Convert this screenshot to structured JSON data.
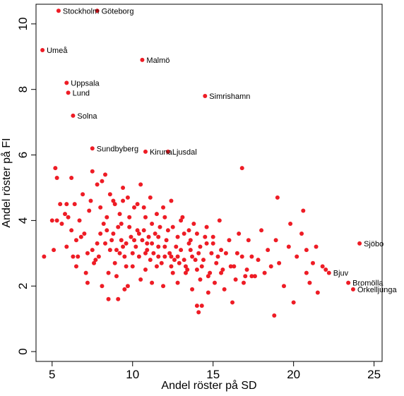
{
  "chart_data": {
    "type": "scatter",
    "title": "",
    "xlabel": "Andel röster på SD",
    "ylabel": "Andel röster på FI",
    "xlim": [
      4,
      25.5
    ],
    "ylim": [
      -0.3,
      10.6
    ],
    "xticks": [
      5,
      10,
      15,
      20,
      25
    ],
    "yticks": [
      0,
      2,
      4,
      6,
      8,
      10
    ],
    "point_color": "#ee1c25",
    "grid": false,
    "labeled_points": [
      {
        "label": "Stockholm",
        "x": 5.4,
        "y": 10.4
      },
      {
        "label": "Göteborg",
        "x": 7.8,
        "y": 10.4
      },
      {
        "label": "Umeå",
        "x": 4.4,
        "y": 9.2
      },
      {
        "label": "Malmö",
        "x": 10.6,
        "y": 8.9
      },
      {
        "label": "Uppsala",
        "x": 5.9,
        "y": 8.2
      },
      {
        "label": "Lund",
        "x": 6.0,
        "y": 7.9
      },
      {
        "label": "Simrishamn",
        "x": 14.5,
        "y": 7.8
      },
      {
        "label": "Solna",
        "x": 6.3,
        "y": 7.2
      },
      {
        "label": "Sundbyberg",
        "x": 7.5,
        "y": 6.2
      },
      {
        "label": "Kiruna",
        "x": 10.8,
        "y": 6.1
      },
      {
        "label": "Ljusdal",
        "x": 12.2,
        "y": 6.1
      },
      {
        "label": "Sjöbo",
        "x": 24.1,
        "y": 3.3
      },
      {
        "label": "Bjuv",
        "x": 22.2,
        "y": 2.4
      },
      {
        "label": "Bromölla",
        "x": 23.4,
        "y": 2.1
      },
      {
        "label": "Örkelljunga",
        "x": 23.7,
        "y": 1.9
      }
    ],
    "points": [
      [
        5.2,
        5.6
      ],
      [
        5.3,
        5.3
      ],
      [
        5.5,
        4.5
      ],
      [
        5.8,
        4.2
      ],
      [
        5.9,
        4.5
      ],
      [
        6.2,
        5.3
      ],
      [
        6.4,
        4.5
      ],
      [
        6.7,
        4.0
      ],
      [
        6.9,
        4.8
      ],
      [
        7.3,
        4.3
      ],
      [
        7.5,
        5.5
      ],
      [
        7.8,
        5.1
      ],
      [
        8.1,
        5.2
      ],
      [
        8.3,
        5.4
      ],
      [
        8.6,
        4.8
      ],
      [
        8.8,
        4.6
      ],
      [
        9.2,
        4.2
      ],
      [
        9.4,
        5.0
      ],
      [
        9.7,
        4.7
      ],
      [
        10.1,
        4.4
      ],
      [
        10.5,
        5.1
      ],
      [
        10.8,
        4.1
      ],
      [
        11.2,
        3.9
      ],
      [
        11.9,
        4.4
      ],
      [
        12.4,
        4.6
      ],
      [
        13.1,
        4.1
      ],
      [
        13.8,
        3.9
      ],
      [
        14.6,
        3.8
      ],
      [
        15.4,
        4.0
      ],
      [
        16.6,
        3.6
      ],
      [
        5.1,
        3.1
      ],
      [
        5.3,
        4.0
      ],
      [
        5.6,
        3.9
      ],
      [
        5.9,
        3.2
      ],
      [
        6.3,
        2.9
      ],
      [
        6.5,
        3.4
      ],
      [
        6.8,
        3.5
      ],
      [
        7.2,
        3.0
      ],
      [
        7.5,
        3.1
      ],
      [
        7.7,
        2.8
      ],
      [
        8.0,
        3.6
      ],
      [
        8.3,
        3.3
      ],
      [
        8.6,
        3.1
      ],
      [
        8.9,
        2.7
      ],
      [
        9.1,
        3.8
      ],
      [
        9.3,
        3.4
      ],
      [
        9.6,
        2.6
      ],
      [
        9.9,
        3.5
      ],
      [
        10.2,
        3.2
      ],
      [
        10.4,
        2.9
      ],
      [
        10.7,
        3.7
      ],
      [
        10.9,
        3.3
      ],
      [
        11.1,
        2.8
      ],
      [
        11.4,
        3.6
      ],
      [
        11.6,
        3.2
      ],
      [
        11.8,
        2.7
      ],
      [
        12.1,
        3.4
      ],
      [
        12.3,
        3.0
      ],
      [
        12.6,
        2.8
      ],
      [
        12.8,
        3.5
      ],
      [
        13.0,
        3.1
      ],
      [
        13.3,
        2.6
      ],
      [
        13.5,
        3.3
      ],
      [
        13.7,
        2.9
      ],
      [
        14.0,
        2.5
      ],
      [
        14.2,
        3.2
      ],
      [
        14.4,
        2.8
      ],
      [
        14.7,
        2.3
      ],
      [
        14.9,
        3.0
      ],
      [
        15.2,
        2.7
      ],
      [
        15.5,
        2.4
      ],
      [
        15.8,
        3.0
      ],
      [
        16.1,
        2.6
      ],
      [
        16.4,
        2.2
      ],
      [
        16.8,
        2.9
      ],
      [
        17.1,
        2.5
      ],
      [
        17.4,
        2.3
      ],
      [
        17.8,
        2.8
      ],
      [
        18.2,
        2.4
      ],
      [
        18.6,
        2.6
      ],
      [
        8.4,
        3.7
      ],
      [
        8.7,
        3.4
      ],
      [
        9.0,
        3.1
      ],
      [
        9.3,
        3.9
      ],
      [
        9.5,
        2.9
      ],
      [
        9.8,
        3.8
      ],
      [
        10.0,
        3.0
      ],
      [
        10.3,
        3.7
      ],
      [
        10.6,
        3.4
      ],
      [
        10.8,
        2.5
      ],
      [
        11.0,
        3.5
      ],
      [
        11.3,
        3.0
      ],
      [
        11.5,
        2.6
      ],
      [
        11.7,
        3.8
      ],
      [
        12.0,
        2.9
      ],
      [
        12.2,
        3.7
      ],
      [
        12.5,
        2.4
      ],
      [
        12.7,
        3.2
      ],
      [
        12.9,
        2.7
      ],
      [
        13.2,
        3.6
      ],
      [
        13.4,
        2.5
      ],
      [
        13.6,
        3.4
      ],
      [
        13.9,
        2.8
      ],
      [
        14.1,
        3.0
      ],
      [
        14.3,
        2.6
      ],
      [
        14.6,
        3.3
      ],
      [
        14.8,
        2.4
      ],
      [
        15.0,
        3.5
      ],
      [
        15.3,
        2.9
      ],
      [
        15.6,
        2.5
      ],
      [
        7.9,
        2.9
      ],
      [
        8.2,
        3.9
      ],
      [
        8.5,
        2.4
      ],
      [
        8.8,
        3.6
      ],
      [
        9.0,
        2.3
      ],
      [
        9.4,
        3.2
      ],
      [
        9.7,
        2.0
      ],
      [
        10.1,
        3.4
      ],
      [
        10.5,
        2.2
      ],
      [
        10.9,
        3.1
      ],
      [
        11.2,
        2.1
      ],
      [
        11.6,
        2.9
      ],
      [
        11.9,
        2.0
      ],
      [
        12.4,
        2.6
      ],
      [
        12.8,
        2.1
      ],
      [
        13.3,
        2.4
      ],
      [
        13.7,
        1.9
      ],
      [
        14.2,
        2.2
      ],
      [
        14.7,
        1.8
      ],
      [
        15.1,
        2.1
      ],
      [
        7.4,
        4.6
      ],
      [
        8.0,
        4.4
      ],
      [
        8.4,
        4.1
      ],
      [
        8.9,
        4.5
      ],
      [
        9.4,
        4.6
      ],
      [
        9.8,
        4.1
      ],
      [
        10.3,
        4.5
      ],
      [
        10.7,
        4.4
      ],
      [
        11.1,
        4.7
      ],
      [
        11.5,
        4.2
      ],
      [
        12.0,
        4.1
      ],
      [
        12.5,
        3.8
      ],
      [
        13.0,
        4.0
      ],
      [
        13.5,
        3.7
      ],
      [
        14.0,
        3.6
      ],
      [
        14.5,
        3.5
      ],
      [
        15.0,
        3.3
      ],
      [
        15.5,
        3.1
      ],
      [
        16.0,
        3.4
      ],
      [
        16.5,
        3.0
      ],
      [
        6.0,
        4.1
      ],
      [
        6.2,
        3.7
      ],
      [
        6.5,
        2.6
      ],
      [
        7.0,
        3.6
      ],
      [
        7.2,
        2.1
      ],
      [
        7.6,
        2.7
      ],
      [
        8.1,
        2.0
      ],
      [
        8.5,
        1.6
      ],
      [
        9.1,
        1.6
      ],
      [
        9.5,
        1.9
      ],
      [
        9.2,
        3.0
      ],
      [
        9.6,
        3.3
      ],
      [
        10.0,
        2.6
      ],
      [
        10.4,
        3.6
      ],
      [
        10.8,
        3.0
      ],
      [
        11.2,
        3.3
      ],
      [
        11.6,
        3.5
      ],
      [
        12.0,
        3.2
      ],
      [
        12.4,
        2.9
      ],
      [
        12.8,
        2.9
      ],
      [
        13.2,
        2.8
      ],
      [
        13.6,
        3.1
      ],
      [
        14.0,
        1.4
      ],
      [
        14.1,
        1.2
      ],
      [
        14.3,
        1.4
      ],
      [
        15.7,
        1.9
      ],
      [
        16.2,
        1.5
      ],
      [
        17.0,
        2.3
      ],
      [
        17.6,
        2.3
      ],
      [
        18.8,
        1.1
      ],
      [
        18.9,
        3.4
      ],
      [
        19.1,
        2.7
      ],
      [
        19.4,
        2.0
      ],
      [
        19.7,
        3.2
      ],
      [
        20.0,
        1.5
      ],
      [
        20.2,
        2.9
      ],
      [
        20.5,
        3.6
      ],
      [
        20.8,
        2.4
      ],
      [
        21.2,
        2.7
      ],
      [
        21.5,
        1.8
      ],
      [
        21.8,
        2.6
      ],
      [
        22.0,
        2.5
      ],
      [
        19.0,
        4.7
      ],
      [
        19.8,
        3.9
      ],
      [
        20.6,
        4.3
      ],
      [
        20.8,
        3.1
      ],
      [
        21.0,
        2.1
      ],
      [
        21.4,
        3.2
      ],
      [
        18.4,
        3.1
      ],
      [
        17.4,
        2.9
      ],
      [
        16.9,
        2.1
      ],
      [
        16.3,
        2.6
      ],
      [
        17.2,
        3.4
      ],
      [
        18.0,
        3.7
      ],
      [
        16.8,
        5.6
      ],
      [
        4.5,
        2.9
      ],
      [
        5.0,
        4.0
      ],
      [
        6.6,
        2.9
      ],
      [
        7.1,
        2.4
      ],
      [
        7.8,
        3.3
      ]
    ]
  }
}
